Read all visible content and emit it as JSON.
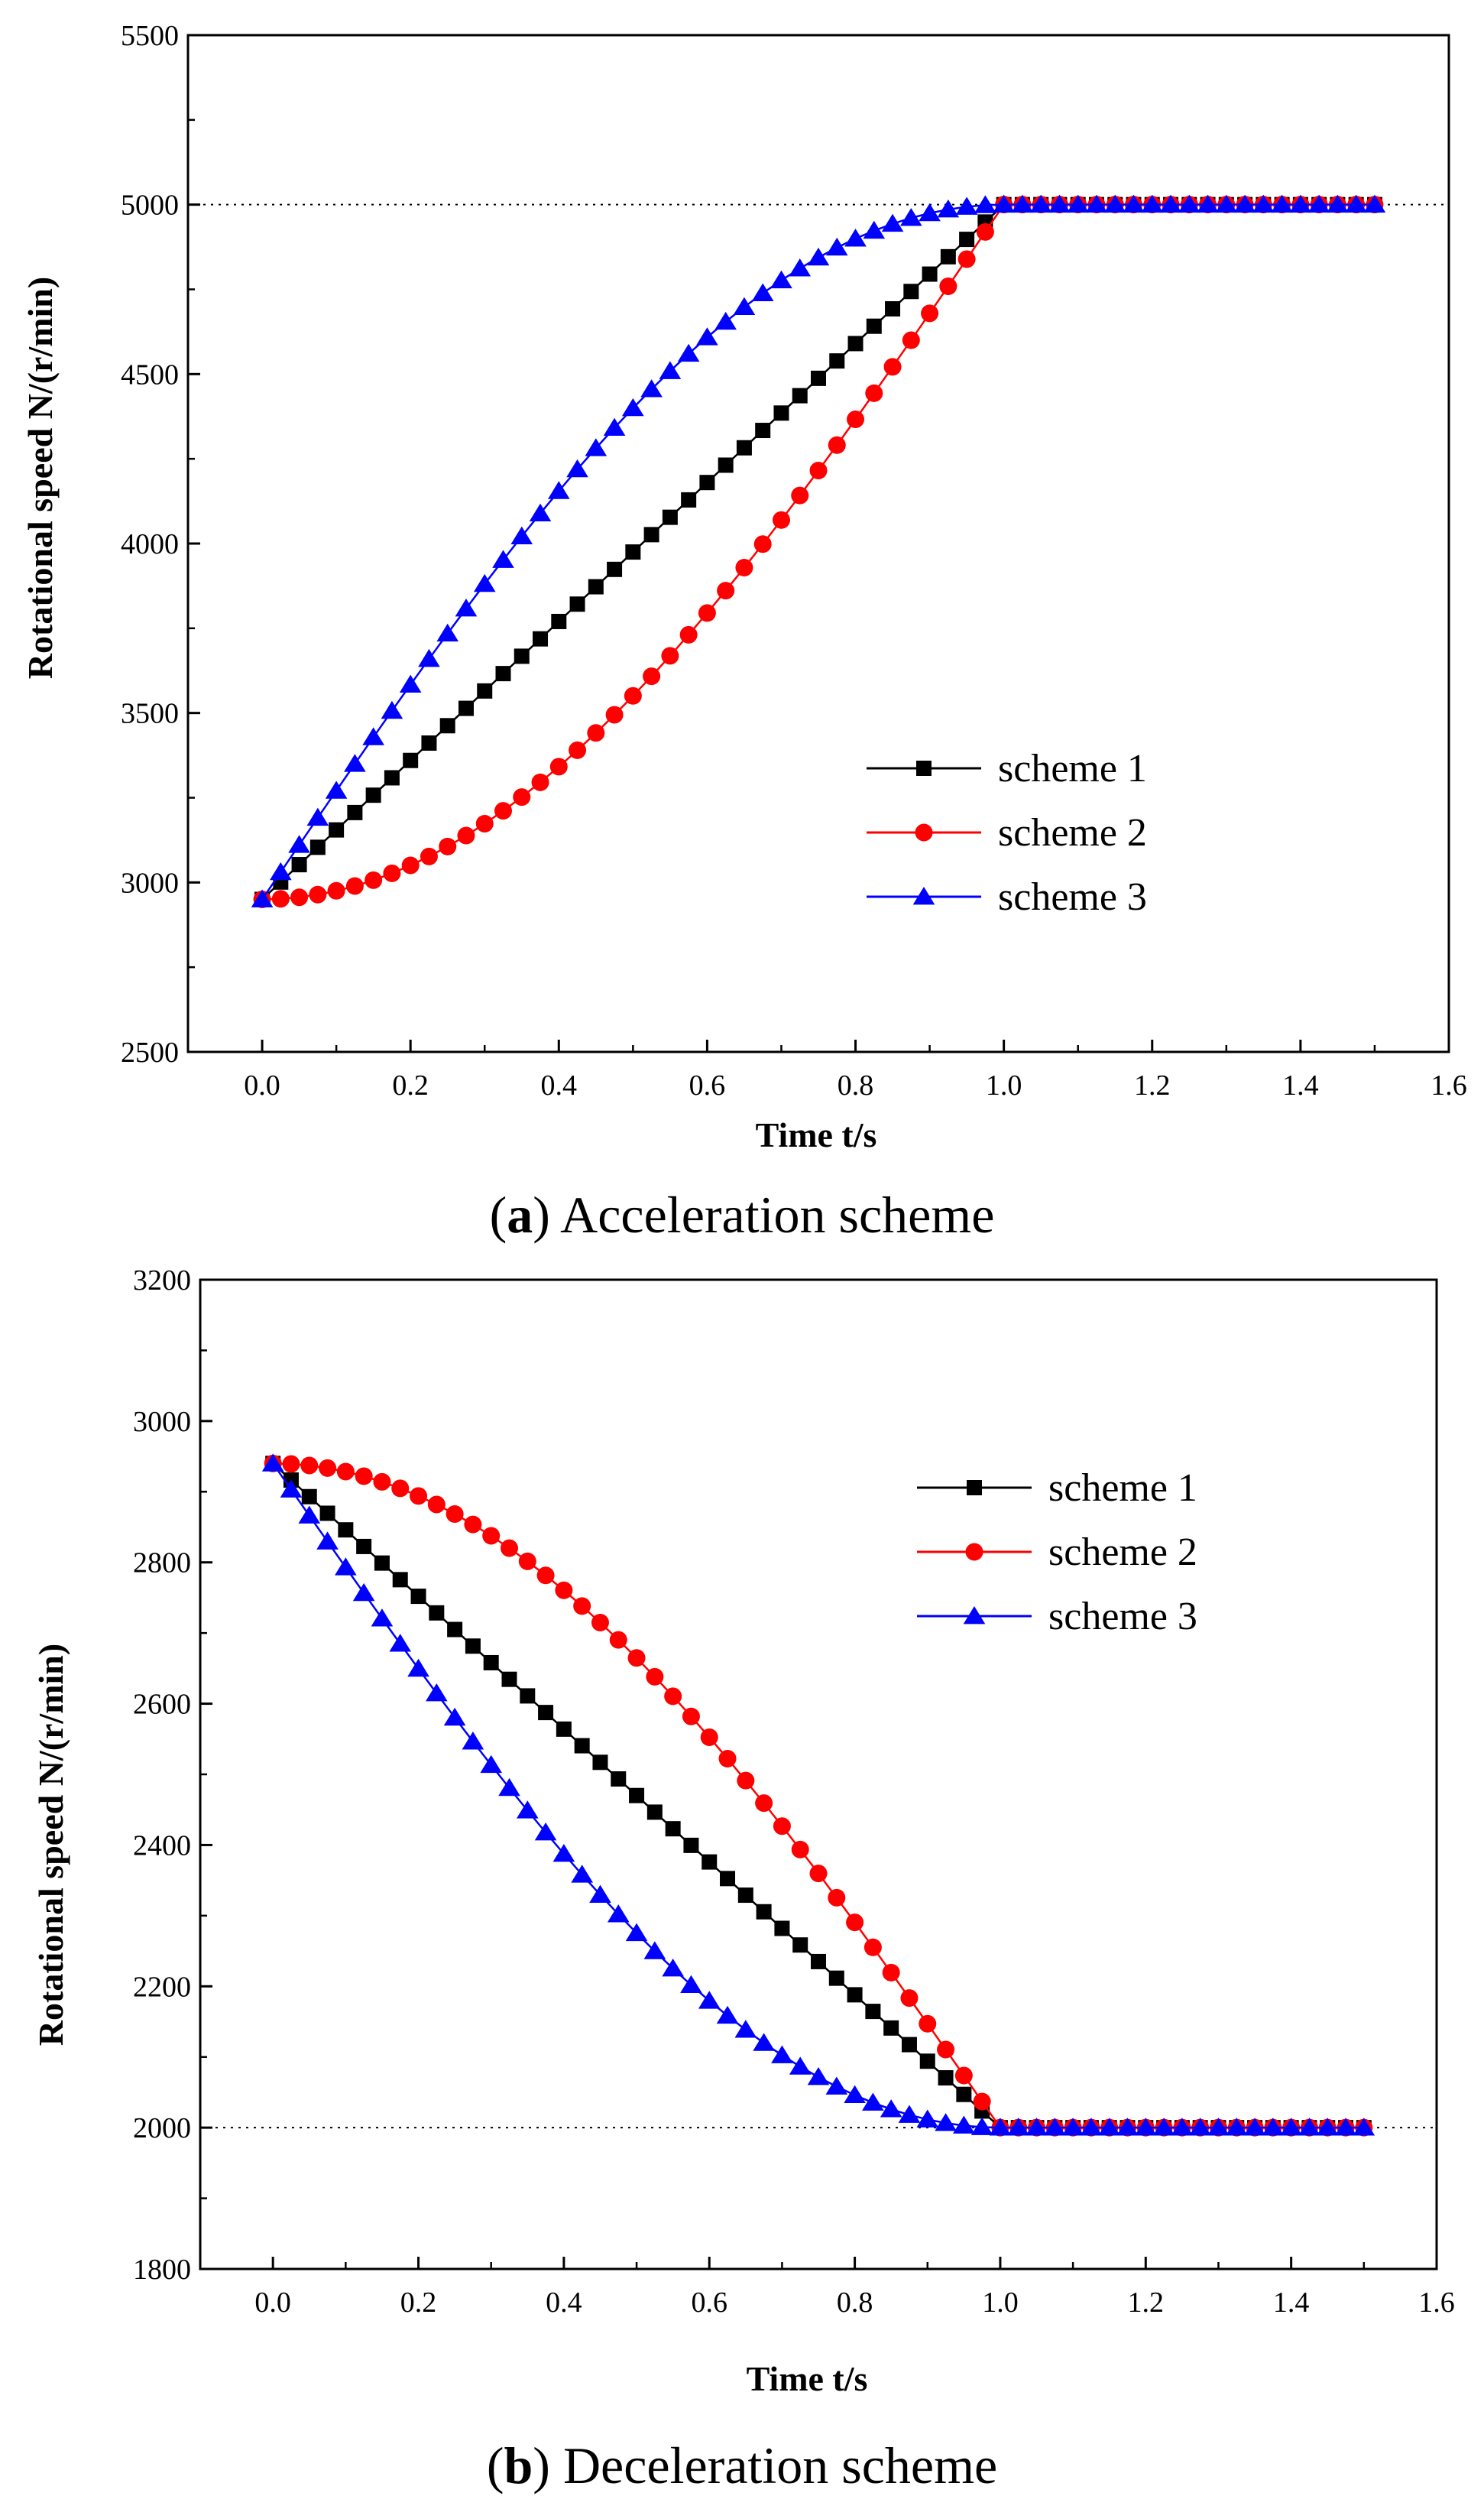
{
  "chart_data": [
    {
      "type": "line",
      "caption": {
        "open": "(",
        "letter": "a",
        "rest": ") Acceleration scheme"
      },
      "xlabel": "Time t/s",
      "ylabel": "Rotational speed N/(r/min)",
      "xlim": [
        -0.1,
        1.6
      ],
      "ylim": [
        2500,
        5500
      ],
      "xticks": [
        0.0,
        0.2,
        0.4,
        0.6,
        0.8,
        1.0,
        1.2,
        1.4,
        1.6
      ],
      "xtick_labels": [
        "0.0",
        "0.2",
        "0.4",
        "0.6",
        "0.8",
        "1.0",
        "1.2",
        "1.4",
        "1.6"
      ],
      "yticks": [
        2500,
        3000,
        3500,
        4000,
        4500,
        5000,
        5500
      ],
      "ytick_labels": [
        "2500",
        "3000",
        "3500",
        "4000",
        "4500",
        "5000",
        "5500"
      ],
      "reference_line": 5000,
      "legend_position": "right-middle",
      "start_value": 2950,
      "end_value": 5000,
      "ramp_time": 1.0,
      "sample_step": 0.025,
      "end_time": 1.5,
      "series": [
        {
          "name": "scheme 1",
          "profile": "linear",
          "marker": "square",
          "color": "#000000"
        },
        {
          "name": "scheme 2",
          "profile": "ease-in",
          "marker": "circle",
          "color": "#ff0000"
        },
        {
          "name": "scheme 3",
          "profile": "ease-out",
          "marker": "triangle",
          "color": "#0000ff"
        }
      ]
    },
    {
      "type": "line",
      "caption": {
        "open": "(",
        "letter": "b",
        "rest": ") Deceleration scheme"
      },
      "xlabel": "Time t/s",
      "ylabel": "Rotational speed N/(r/min)",
      "xlim": [
        -0.1,
        1.6
      ],
      "ylim": [
        1800,
        3200
      ],
      "xticks": [
        0.0,
        0.2,
        0.4,
        0.6,
        0.8,
        1.0,
        1.2,
        1.4,
        1.6
      ],
      "xtick_labels": [
        "0.0",
        "0.2",
        "0.4",
        "0.6",
        "0.8",
        "1.0",
        "1.2",
        "1.4",
        "1.6"
      ],
      "yticks": [
        1800,
        2000,
        2200,
        2400,
        2600,
        2800,
        3000,
        3200
      ],
      "ytick_labels": [
        "1800",
        "2000",
        "2200",
        "2400",
        "2600",
        "2800",
        "3000",
        "3200"
      ],
      "reference_line": 2000,
      "legend_position": "top-right",
      "start_value": 2940,
      "end_value": 2000,
      "ramp_time": 1.0,
      "sample_step": 0.025,
      "end_time": 1.5,
      "series": [
        {
          "name": "scheme 1",
          "profile": "linear",
          "marker": "square",
          "color": "#000000"
        },
        {
          "name": "scheme 2",
          "profile": "ease-in",
          "marker": "circle",
          "color": "#ff0000"
        },
        {
          "name": "scheme 3",
          "profile": "ease-out",
          "marker": "triangle",
          "color": "#0000ff"
        }
      ]
    }
  ]
}
